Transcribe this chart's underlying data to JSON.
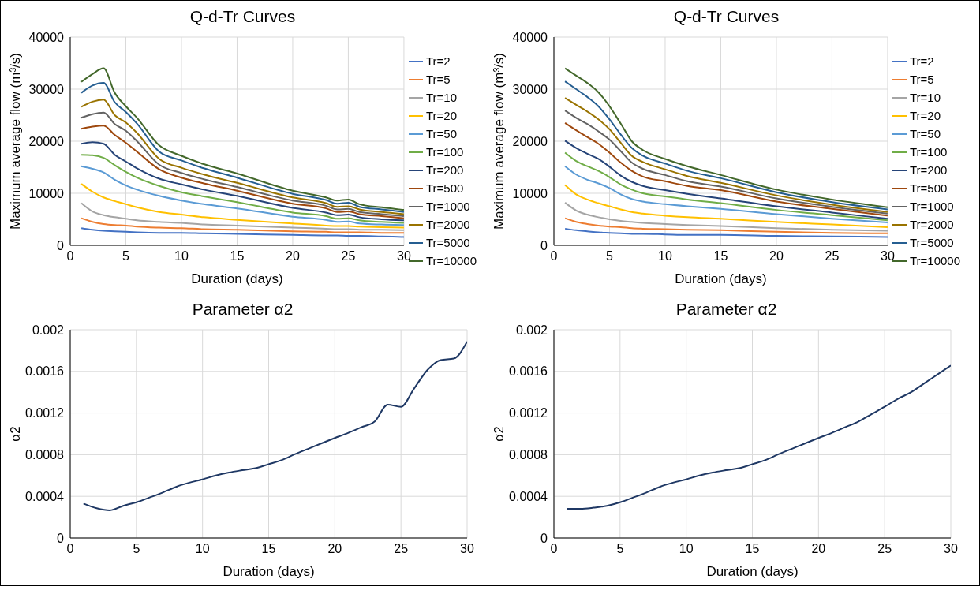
{
  "chart_data": [
    {
      "type": "line",
      "title": "Q-d-Tr Curves",
      "xlabel": "Duration (days)",
      "ylabel": "Maximum average flow (m³/s)",
      "x": [
        1,
        2,
        3,
        4,
        5,
        6,
        8,
        10,
        12,
        15,
        20,
        23,
        24,
        25,
        26,
        28,
        30
      ],
      "xlim": [
        0,
        30
      ],
      "xticks": [
        0,
        5,
        10,
        15,
        20,
        25,
        30
      ],
      "ylim": [
        0,
        40000
      ],
      "yticks": [
        0,
        10000,
        20000,
        30000,
        40000
      ],
      "grid": true,
      "legend": "right",
      "marker": "none",
      "line_style": "solid",
      "series": [
        {
          "name": "Tr=2",
          "color": "#4472c4",
          "values": [
            3300,
            3000,
            2800,
            2700,
            2600,
            2500,
            2400,
            2400,
            2300,
            2200,
            2000,
            1900,
            1900,
            1800,
            1800,
            1700,
            1600
          ]
        },
        {
          "name": "Tr=5",
          "color": "#ed7d31",
          "values": [
            5200,
            4500,
            4100,
            3900,
            3800,
            3600,
            3400,
            3300,
            3100,
            3000,
            2700,
            2600,
            2500,
            2500,
            2500,
            2400,
            2400
          ]
        },
        {
          "name": "Tr=10",
          "color": "#a5a5a5",
          "values": [
            8100,
            6500,
            5800,
            5400,
            5100,
            4800,
            4500,
            4300,
            4000,
            3800,
            3400,
            3200,
            3100,
            3100,
            3000,
            3000,
            2900
          ]
        },
        {
          "name": "Tr=20",
          "color": "#ffc000",
          "values": [
            11800,
            10300,
            9200,
            8500,
            7900,
            7300,
            6400,
            5900,
            5400,
            4900,
            4200,
            3800,
            3700,
            3700,
            3600,
            3500,
            3400
          ]
        },
        {
          "name": "Tr=50",
          "color": "#5b9bd5",
          "values": [
            15200,
            14700,
            14000,
            12600,
            11500,
            10700,
            9500,
            8600,
            7900,
            7100,
            5500,
            4900,
            4500,
            4600,
            4200,
            4000,
            3900
          ]
        },
        {
          "name": "Tr=100",
          "color": "#70ad47",
          "values": [
            17400,
            17300,
            16800,
            15400,
            14100,
            13000,
            11400,
            10200,
            9400,
            8300,
            6300,
            5600,
            5100,
            5200,
            4800,
            4500,
            4300
          ]
        },
        {
          "name": "Tr=200",
          "color": "#264478",
          "values": [
            19500,
            19800,
            19500,
            17400,
            16100,
            14800,
            12800,
            11700,
            10700,
            9500,
            7200,
            6300,
            5800,
            5900,
            5400,
            5000,
            4800
          ]
        },
        {
          "name": "Tr=500",
          "color": "#9e480e",
          "values": [
            22400,
            22800,
            23000,
            21200,
            19700,
            18000,
            14600,
            13000,
            11900,
            10500,
            8000,
            7100,
            6400,
            6500,
            6000,
            5600,
            5200
          ]
        },
        {
          "name": "Tr=1000",
          "color": "#636363",
          "values": [
            24500,
            25200,
            25500,
            23300,
            22000,
            20000,
            15500,
            13900,
            12700,
            11200,
            8600,
            7600,
            6900,
            7000,
            6400,
            6000,
            5600
          ]
        },
        {
          "name": "Tr=2000",
          "color": "#997300",
          "values": [
            26600,
            27600,
            28000,
            25000,
            23600,
            21600,
            16600,
            14900,
            13600,
            12000,
            9200,
            8100,
            7400,
            7500,
            6900,
            6400,
            6000
          ]
        },
        {
          "name": "Tr=5000",
          "color": "#255e91",
          "values": [
            29300,
            30700,
            31200,
            27500,
            25600,
            23400,
            18000,
            16300,
            14800,
            13000,
            9900,
            8700,
            8000,
            8200,
            7400,
            6900,
            6400
          ]
        },
        {
          "name": "Tr=10000",
          "color": "#43682b",
          "values": [
            31400,
            32900,
            34000,
            29300,
            26700,
            24500,
            19200,
            17200,
            15600,
            13800,
            10500,
            9200,
            8600,
            8800,
            7900,
            7300,
            6800
          ]
        }
      ]
    },
    {
      "type": "line",
      "title": "Q-d-Tr Curves",
      "xlabel": "Duration (days)",
      "ylabel": "Maximum average flow (m³/s)",
      "x": [
        1,
        2,
        3,
        4,
        5,
        6,
        7,
        8,
        10,
        12,
        15,
        20,
        25,
        30
      ],
      "xlim": [
        0,
        30
      ],
      "xticks": [
        0,
        5,
        10,
        15,
        20,
        25,
        30
      ],
      "ylim": [
        0,
        40000
      ],
      "yticks": [
        0,
        10000,
        20000,
        30000,
        40000
      ],
      "grid": true,
      "legend": "right",
      "marker": "none",
      "line_style": "solid",
      "series": [
        {
          "name": "Tr=2",
          "color": "#4472c4",
          "values": [
            3200,
            2900,
            2700,
            2500,
            2400,
            2300,
            2200,
            2200,
            2100,
            2000,
            2000,
            1800,
            1700,
            1600
          ]
        },
        {
          "name": "Tr=5",
          "color": "#ed7d31",
          "values": [
            5200,
            4500,
            4100,
            3800,
            3600,
            3500,
            3300,
            3200,
            3100,
            3000,
            2900,
            2600,
            2400,
            2300
          ]
        },
        {
          "name": "Tr=10",
          "color": "#a5a5a5",
          "values": [
            8200,
            6700,
            5900,
            5400,
            5000,
            4700,
            4500,
            4300,
            4100,
            3900,
            3700,
            3300,
            3000,
            2800
          ]
        },
        {
          "name": "Tr=20",
          "color": "#ffc000",
          "values": [
            11600,
            9800,
            8800,
            8100,
            7500,
            6900,
            6400,
            6100,
            5700,
            5400,
            5100,
            4500,
            4000,
            3500
          ]
        },
        {
          "name": "Tr=50",
          "color": "#5b9bd5",
          "values": [
            15200,
            13600,
            12600,
            11900,
            11000,
            9800,
            8900,
            8400,
            7900,
            7500,
            7000,
            6000,
            5100,
            4400
          ]
        },
        {
          "name": "Tr=100",
          "color": "#70ad47",
          "values": [
            17800,
            16200,
            15200,
            14300,
            13100,
            11700,
            10700,
            10000,
            9400,
            8800,
            8100,
            6800,
            5800,
            4800
          ]
        },
        {
          "name": "Tr=200",
          "color": "#264478",
          "values": [
            20100,
            18700,
            17600,
            16600,
            15100,
            13400,
            12200,
            11400,
            10600,
            9900,
            9000,
            7500,
            6300,
            5100
          ]
        },
        {
          "name": "Tr=500",
          "color": "#9e480e",
          "values": [
            23500,
            22100,
            20800,
            19500,
            17800,
            15900,
            14300,
            13200,
            12300,
            11400,
            10600,
            8400,
            7000,
            5700
          ]
        },
        {
          "name": "Tr=1000",
          "color": "#636363",
          "values": [
            25900,
            24500,
            23300,
            21900,
            20300,
            18100,
            15900,
            14700,
            13500,
            12300,
            11300,
            9000,
            7400,
            6100
          ]
        },
        {
          "name": "Tr=2000",
          "color": "#997300",
          "values": [
            28300,
            27000,
            25700,
            24200,
            22300,
            19700,
            17200,
            16000,
            14600,
            13300,
            12000,
            9600,
            7800,
            6400
          ]
        },
        {
          "name": "Tr=5000",
          "color": "#255e91",
          "values": [
            31500,
            30000,
            28500,
            26700,
            24200,
            21300,
            18700,
            17200,
            15700,
            14300,
            12900,
            10200,
            8300,
            6900
          ]
        },
        {
          "name": "Tr=10000",
          "color": "#43682b",
          "values": [
            34000,
            32600,
            31200,
            29400,
            26700,
            23400,
            20000,
            18300,
            16600,
            15200,
            13500,
            10700,
            8800,
            7300
          ]
        }
      ]
    },
    {
      "type": "line",
      "title": "Parameter α2",
      "xlabel": "Duration (days)",
      "ylabel": "α2",
      "x": [
        1,
        2,
        3,
        4,
        5,
        6,
        7,
        8,
        9,
        10,
        11,
        12,
        13,
        14,
        15,
        16,
        17,
        18,
        19,
        20,
        21,
        22,
        23,
        24,
        25,
        26,
        27,
        28,
        29,
        30
      ],
      "xlim": [
        0,
        30
      ],
      "xticks": [
        0,
        5,
        10,
        15,
        20,
        25,
        30
      ],
      "ylim": [
        0,
        0.002
      ],
      "yticks": [
        0,
        0.0004,
        0.0008,
        0.0012,
        0.0016,
        0.002
      ],
      "grid": true,
      "marker": "none",
      "line_style": "solid",
      "series": [
        {
          "color": "#1f3864",
          "values": [
            0.00033,
            0.000286,
            0.000266,
            0.000309,
            0.000343,
            0.000389,
            0.000437,
            0.000491,
            0.000531,
            0.000563,
            0.0006,
            0.000629,
            0.000651,
            0.000671,
            0.000709,
            0.000749,
            0.000806,
            0.000857,
            0.000909,
            0.00096,
            0.001009,
            0.001063,
            0.001117,
            0.00128,
            0.00126,
            0.001437,
            0.001614,
            0.001709,
            0.001723,
            0.001886
          ]
        }
      ]
    },
    {
      "type": "line",
      "title": "Parameter α2",
      "xlabel": "Duration (days)",
      "ylabel": "α2",
      "x": [
        1,
        2,
        3,
        4,
        5,
        6,
        7,
        8,
        9,
        10,
        11,
        12,
        13,
        14,
        15,
        16,
        17,
        18,
        19,
        20,
        21,
        22,
        23,
        24,
        25,
        26,
        27,
        28,
        29,
        30
      ],
      "xlim": [
        0,
        30
      ],
      "xticks": [
        0,
        5,
        10,
        15,
        20,
        25,
        30
      ],
      "ylim": [
        0,
        0.002
      ],
      "yticks": [
        0,
        0.0004,
        0.0008,
        0.0012,
        0.0016,
        0.002
      ],
      "grid": true,
      "marker": "none",
      "line_style": "solid",
      "series": [
        {
          "color": "#1f3864",
          "values": [
            0.00028,
            0.00028,
            0.000291,
            0.000309,
            0.000343,
            0.000389,
            0.000437,
            0.000491,
            0.000531,
            0.000563,
            0.0006,
            0.000629,
            0.000651,
            0.000671,
            0.000709,
            0.000749,
            0.000806,
            0.000857,
            0.000909,
            0.00096,
            0.001009,
            0.001063,
            0.001117,
            0.001189,
            0.00126,
            0.001337,
            0.0014,
            0.001486,
            0.001571,
            0.001657
          ]
        }
      ]
    }
  ]
}
